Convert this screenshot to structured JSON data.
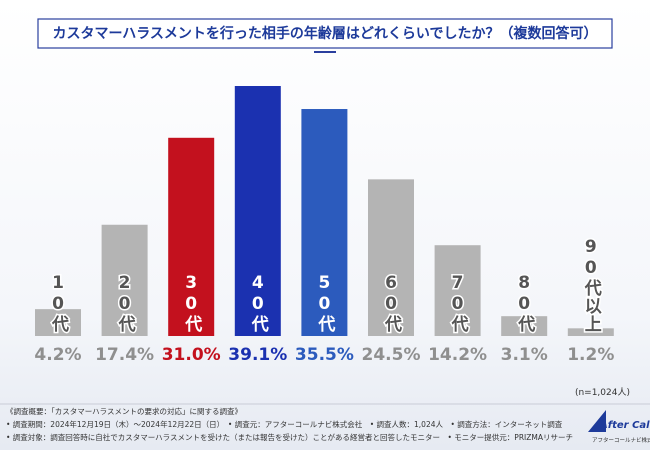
{
  "chart_data": {
    "type": "bar",
    "title": "カスタマーハラスメントを行った相手の年齢層はどれくらいでしたか？（複数回答可）",
    "categories": [
      "10代",
      "20代",
      "30代",
      "40代",
      "50代",
      "60代",
      "70代",
      "80代",
      "90代以上"
    ],
    "values": [
      4.2,
      17.4,
      31.0,
      39.1,
      35.5,
      24.5,
      14.2,
      3.1,
      1.2
    ],
    "value_labels": [
      "4.2%",
      "17.4%",
      "31.0%",
      "39.1%",
      "35.5%",
      "24.5%",
      "14.2%",
      "3.1%",
      "1.2%"
    ],
    "colors": [
      "#b4b4b4",
      "#b4b4b4",
      "#c3111e",
      "#1b31b0",
      "#2c5bbd",
      "#b4b4b4",
      "#b4b4b4",
      "#b4b4b4",
      "#b4b4b4"
    ],
    "inner_label_colors": [
      "#555555",
      "#555555",
      "#ffffff",
      "#ffffff",
      "#ffffff",
      "#555555",
      "#555555",
      "#555555",
      "#555555"
    ],
    "sample_note": "(n=1,024人)",
    "footer": [
      "《調査概要：「カスタマーハラスメントの要求の対応」に関する調査》",
      "• 調査期間：2024年12月19日（木）～2024年12月22日（日）　• 調査元：アフターコールナビ株式会社　• 調査人数：1,024人　• 調査方法：インターネット調査",
      "• 調査対象：調査回答時に自社でカスタマーハラスメントを受けた（または報告を受けた）ことがある経営者と回答したモニター　• モニター提供元：PRIZMAリサーチ"
    ],
    "logo": "After Call Navi",
    "logo_sub": "アフターコールナビ株式会社"
  }
}
